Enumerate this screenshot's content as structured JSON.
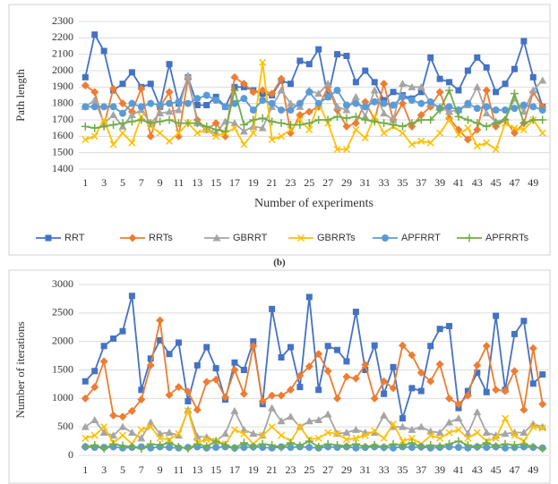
{
  "chart_data": [
    {
      "type": "line",
      "ylabel": "Path length",
      "xlabel": "Number of experiments",
      "x": [
        1,
        2,
        3,
        4,
        5,
        6,
        7,
        8,
        9,
        10,
        11,
        12,
        13,
        14,
        15,
        16,
        17,
        18,
        19,
        20,
        21,
        22,
        23,
        24,
        25,
        26,
        27,
        28,
        29,
        30,
        31,
        32,
        33,
        34,
        35,
        36,
        37,
        38,
        39,
        40,
        41,
        42,
        43,
        44,
        45,
        46,
        47,
        48,
        49,
        50
      ],
      "xlim": [
        0.3,
        50.7
      ],
      "xticks": [
        1,
        3,
        5,
        7,
        9,
        11,
        13,
        15,
        17,
        19,
        21,
        23,
        25,
        27,
        29,
        31,
        33,
        35,
        37,
        39,
        41,
        43,
        45,
        47,
        49
      ],
      "ylim": [
        1400,
        2300
      ],
      "yticks": [
        1400,
        1500,
        1600,
        1700,
        1800,
        1900,
        2000,
        2100,
        2200,
        2300
      ],
      "grid": true,
      "legend": "bottom",
      "series": [
        {
          "name": "RRT",
          "color": "#4472c4",
          "marker": "square",
          "values": [
            1960,
            2220,
            2120,
            1880,
            1920,
            1990,
            1900,
            1920,
            1780,
            2040,
            1800,
            1960,
            1790,
            1790,
            1840,
            1780,
            1900,
            1900,
            1880,
            1860,
            1850,
            1940,
            1920,
            2060,
            2040,
            2130,
            1840,
            2100,
            2090,
            1930,
            2000,
            1930,
            1820,
            1870,
            1850,
            1830,
            1870,
            2080,
            1950,
            1930,
            1880,
            2000,
            2080,
            2020,
            1870,
            1920,
            2010,
            2180,
            1960,
            1780
          ]
        },
        {
          "name": "RRTs",
          "color": "#ed7d31",
          "marker": "diamond",
          "values": [
            1910,
            1870,
            1670,
            1890,
            1800,
            1750,
            1890,
            1600,
            1780,
            1870,
            1600,
            1950,
            1700,
            1640,
            1680,
            1600,
            1960,
            1920,
            1870,
            1880,
            1860,
            1950,
            1620,
            1730,
            1750,
            1780,
            1900,
            1760,
            1660,
            1680,
            1810,
            1700,
            1920,
            1700,
            1800,
            1660,
            1730,
            1780,
            1870,
            1710,
            1640,
            1580,
            1640,
            1880,
            1660,
            1700,
            1620,
            1680,
            1870,
            1780
          ]
        },
        {
          "name": "GBRRT",
          "color": "#a5a5a5",
          "marker": "triangle",
          "values": [
            1780,
            1820,
            1680,
            1730,
            1660,
            1730,
            1760,
            1680,
            1740,
            1750,
            1760,
            1970,
            1680,
            1640,
            1620,
            1690,
            1680,
            1630,
            1660,
            1650,
            1780,
            1880,
            1800,
            1780,
            1880,
            1860,
            1920,
            1780,
            1760,
            1840,
            1720,
            1880,
            1740,
            1700,
            1920,
            1900,
            1900,
            1800,
            1780,
            1750,
            1760,
            1790,
            1900,
            1740,
            1690,
            1700,
            1830,
            1750,
            1880,
            1940
          ]
        },
        {
          "name": "GBRRTs",
          "color": "#ffc000",
          "marker": "x",
          "values": [
            1580,
            1600,
            1700,
            1550,
            1620,
            1560,
            1720,
            1660,
            1620,
            1570,
            1620,
            1680,
            1620,
            1640,
            1600,
            1620,
            1650,
            1550,
            1620,
            2050,
            1580,
            1600,
            1640,
            1700,
            1640,
            1800,
            1680,
            1520,
            1520,
            1640,
            1590,
            1720,
            1620,
            1660,
            1620,
            1550,
            1570,
            1560,
            1620,
            1700,
            1610,
            1650,
            1540,
            1560,
            1520,
            1680,
            1650,
            1640,
            1700,
            1620
          ]
        },
        {
          "name": "APFRRT",
          "color": "#5b9bd5",
          "marker": "circle",
          "values": [
            1780,
            1780,
            1780,
            1780,
            1740,
            1800,
            1780,
            1800,
            1790,
            1800,
            1810,
            1800,
            1830,
            1850,
            1820,
            1780,
            1800,
            1830,
            1760,
            1820,
            1800,
            1760,
            1760,
            1800,
            1870,
            1800,
            1840,
            1880,
            1790,
            1800,
            1780,
            1810,
            1800,
            1790,
            1840,
            1820,
            1800,
            1810,
            1770,
            1780,
            1760,
            1800,
            1770,
            1780,
            1760,
            1760,
            1770,
            1790,
            1780,
            1760
          ]
        },
        {
          "name": "APFRRTs",
          "color": "#70ad47",
          "marker": "plus",
          "values": [
            1660,
            1650,
            1660,
            1670,
            1680,
            1690,
            1700,
            1680,
            1690,
            1700,
            1680,
            1680,
            1680,
            1660,
            1640,
            1630,
            1880,
            1670,
            1700,
            1710,
            1690,
            1680,
            1670,
            1670,
            1680,
            1700,
            1700,
            1720,
            1710,
            1720,
            1700,
            1690,
            1680,
            1670,
            1660,
            1680,
            1700,
            1700,
            1760,
            1880,
            1720,
            1700,
            1680,
            1660,
            1680,
            1700,
            1860,
            1680,
            1700,
            1700
          ]
        }
      ]
    },
    {
      "type": "line",
      "ylabel": "Number of iterations",
      "x": [
        1,
        2,
        3,
        4,
        5,
        6,
        7,
        8,
        9,
        10,
        11,
        12,
        13,
        14,
        15,
        16,
        17,
        18,
        19,
        20,
        21,
        22,
        23,
        24,
        25,
        26,
        27,
        28,
        29,
        30,
        31,
        32,
        33,
        34,
        35,
        36,
        37,
        38,
        39,
        40,
        41,
        42,
        43,
        44,
        45,
        46,
        47,
        48,
        49,
        50
      ],
      "xlim": [
        0.3,
        50.7
      ],
      "xticks": [
        1,
        3,
        5,
        7,
        9,
        11,
        13,
        15,
        17,
        19,
        21,
        23,
        25,
        27,
        29,
        31,
        33,
        35,
        37,
        39,
        41,
        43,
        45,
        47,
        49
      ],
      "ylim": [
        0,
        3000
      ],
      "yticks": [
        0,
        500,
        1000,
        1500,
        2000,
        2500,
        3000
      ],
      "grid": true,
      "series": [
        {
          "name": "RRT",
          "color": "#4472c4",
          "marker": "square",
          "values": [
            1300,
            1480,
            1920,
            2050,
            2180,
            2800,
            1150,
            1700,
            2020,
            1780,
            1980,
            950,
            1580,
            1900,
            1530,
            980,
            1630,
            1500,
            2000,
            900,
            2570,
            1720,
            1900,
            1200,
            2780,
            1150,
            1920,
            1850,
            1650,
            2520,
            1500,
            1930,
            1080,
            1550,
            650,
            1180,
            1130,
            1920,
            2220,
            2270,
            830,
            1130,
            1450,
            1110,
            2450,
            1150,
            2130,
            2360,
            1260,
            1420
          ]
        },
        {
          "name": "RRTs",
          "color": "#ed7d31",
          "marker": "diamond",
          "values": [
            1000,
            1200,
            1650,
            700,
            680,
            780,
            980,
            1580,
            2370,
            1060,
            1200,
            1120,
            800,
            1290,
            1330,
            1020,
            1500,
            1080,
            1920,
            950,
            1050,
            1050,
            1150,
            1400,
            1560,
            1780,
            1480,
            1000,
            1380,
            1350,
            1590,
            1000,
            1300,
            1180,
            1930,
            1760,
            1450,
            1300,
            1600,
            1000,
            900,
            1050,
            1580,
            1920,
            1150,
            1130,
            1480,
            800,
            1880,
            900
          ]
        },
        {
          "name": "GBRRT",
          "color": "#a5a5a5",
          "marker": "triangle",
          "values": [
            500,
            620,
            400,
            350,
            500,
            400,
            300,
            580,
            380,
            400,
            350,
            800,
            330,
            320,
            250,
            380,
            780,
            450,
            380,
            350,
            830,
            600,
            680,
            500,
            600,
            620,
            720,
            380,
            400,
            450,
            400,
            400,
            700,
            500,
            500,
            450,
            500,
            420,
            400,
            580,
            650,
            380,
            760,
            400,
            350,
            380,
            400,
            400,
            550,
            500
          ]
        },
        {
          "name": "GBRRTs",
          "color": "#ffc000",
          "marker": "x",
          "values": [
            300,
            350,
            500,
            220,
            350,
            200,
            450,
            500,
            300,
            280,
            380,
            780,
            220,
            280,
            250,
            200,
            450,
            380,
            200,
            350,
            500,
            350,
            250,
            500,
            280,
            300,
            400,
            380,
            280,
            300,
            350,
            430,
            300,
            550,
            250,
            300,
            200,
            350,
            300,
            400,
            450,
            300,
            400,
            250,
            300,
            650,
            350,
            250,
            500,
            480
          ]
        },
        {
          "name": "APFRRT",
          "color": "#5b9bd5",
          "marker": "circle",
          "values": [
            150,
            140,
            140,
            150,
            130,
            140,
            150,
            130,
            150,
            140,
            130,
            140,
            150,
            130,
            140,
            150,
            130,
            140,
            150,
            140,
            130,
            150,
            140,
            150,
            140,
            130,
            150,
            140,
            150,
            130,
            140,
            150,
            140,
            130,
            150,
            140,
            150,
            130,
            140,
            150,
            140,
            130,
            150,
            140,
            150,
            130,
            140,
            150,
            140,
            130
          ]
        },
        {
          "name": "APFRRTs",
          "color": "#70ad47",
          "marker": "plus",
          "values": [
            150,
            180,
            120,
            200,
            170,
            150,
            120,
            200,
            180,
            220,
            150,
            120,
            200,
            160,
            250,
            180,
            130,
            220,
            150,
            200,
            180,
            140,
            220,
            170,
            250,
            150,
            200,
            180,
            160,
            200,
            150,
            180,
            140,
            200,
            170,
            220,
            150,
            180,
            160,
            200,
            250,
            180,
            150,
            220,
            160,
            200,
            180,
            200,
            150,
            120
          ]
        }
      ]
    }
  ],
  "caption": "(b)"
}
